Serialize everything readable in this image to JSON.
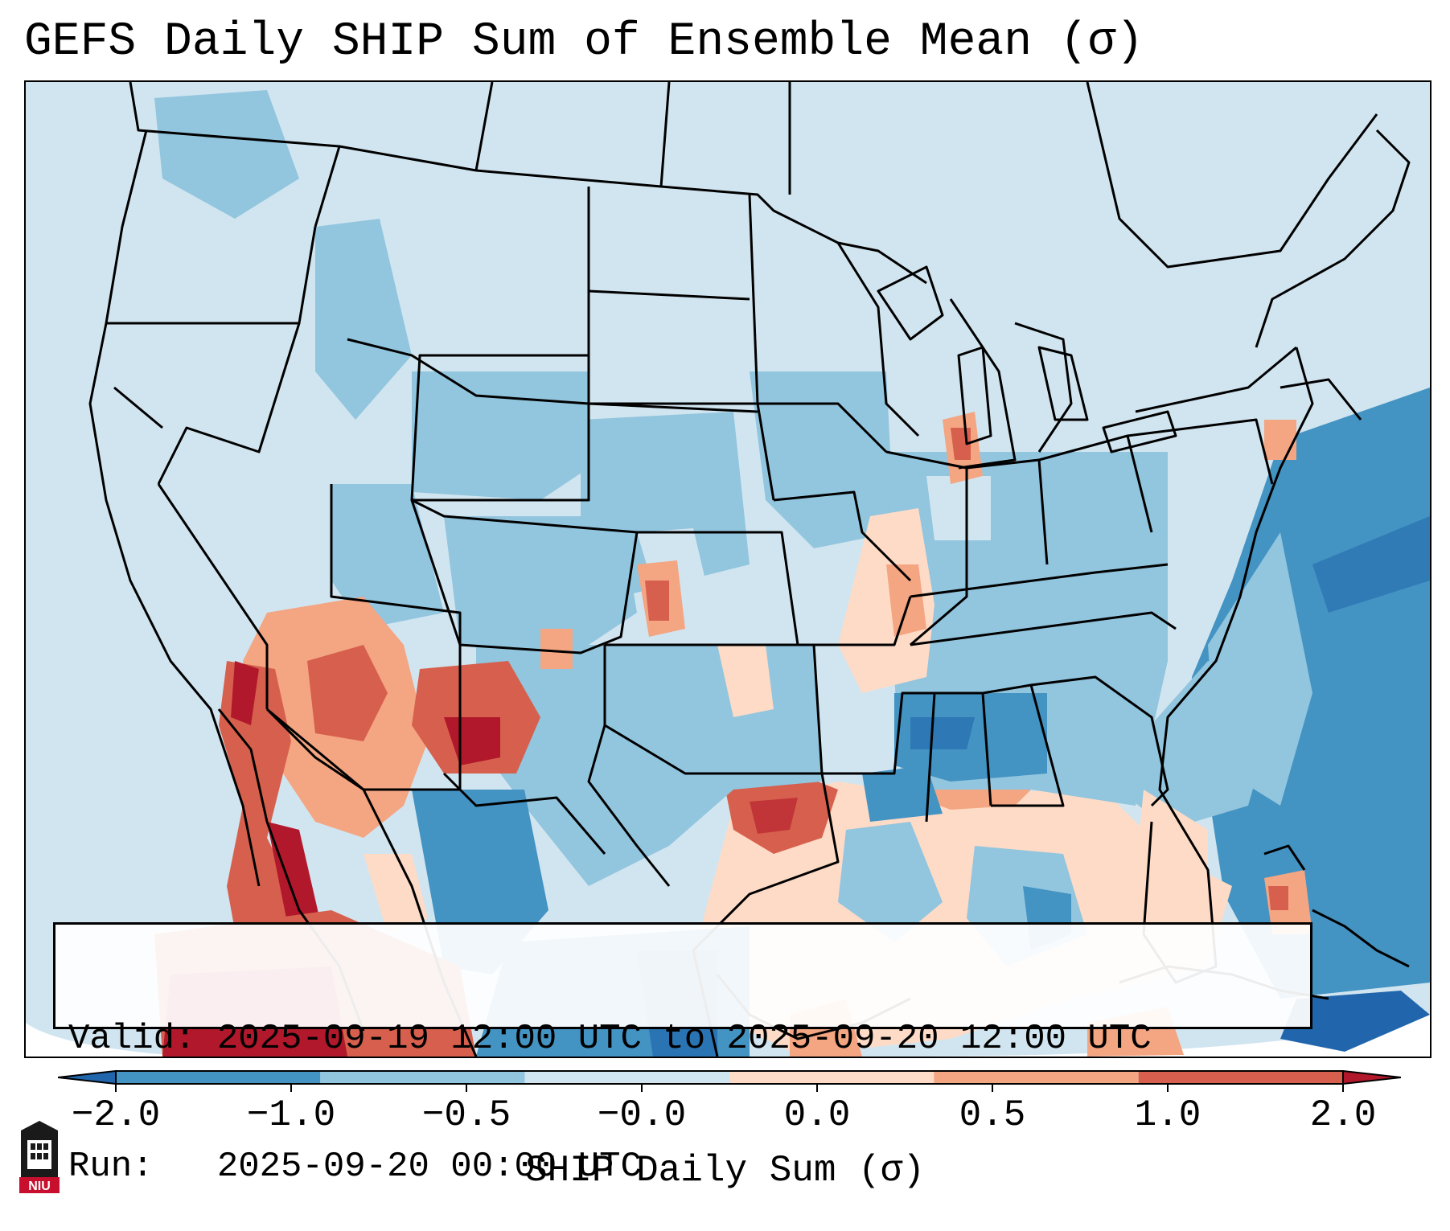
{
  "title": "GEFS Daily SHIP Sum of Ensemble Mean (σ)",
  "info": {
    "valid_label": "Valid:",
    "valid_value": "2025-09-19 12:00 UTC to 2025-09-20 12:00 UTC",
    "run_label": "Run:",
    "run_value": "2025-09-20 00:00 UTC"
  },
  "colorbar": {
    "label": "SHIP Daily Sum (σ)",
    "ticks": [
      "−2.0",
      "−1.0",
      "−0.5",
      "−0.0",
      "0.0",
      "0.5",
      "1.0",
      "2.0"
    ],
    "bin_colors": [
      "#2166ac",
      "#4393c3",
      "#92c5de",
      "#d1e5f0",
      "#fddbc7",
      "#f4a582",
      "#d6604d",
      "#b2182b"
    ],
    "extend": "both"
  },
  "logo_text": "NIU"
}
